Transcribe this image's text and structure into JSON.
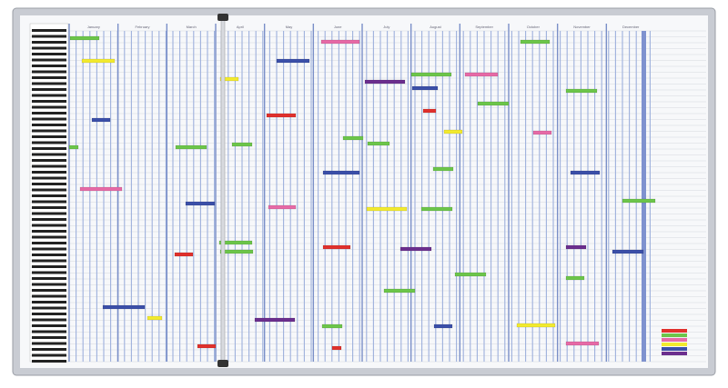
{
  "board": {
    "months": [
      "January",
      "February",
      "March",
      "April",
      "May",
      "June",
      "July",
      "August",
      "September",
      "October",
      "November",
      "December"
    ]
  }
}
